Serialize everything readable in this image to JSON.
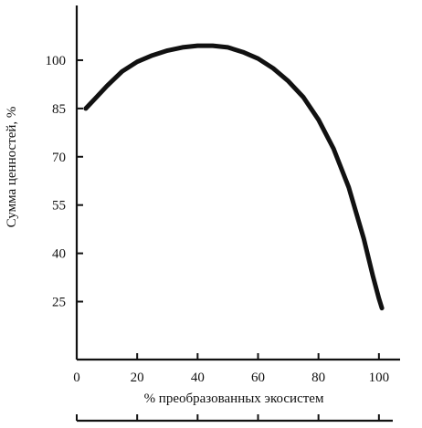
{
  "chart_data": {
    "type": "line",
    "title": "",
    "xlabel": "% преобразованных экосистем",
    "ylabel": "Сумма ценностей, %",
    "xlim": [
      0,
      107
    ],
    "ylim": [
      7,
      117
    ],
    "x_ticks": [
      0,
      20,
      40,
      60,
      80,
      100
    ],
    "y_ticks": [
      25,
      40,
      55,
      70,
      85,
      100
    ],
    "x_tick_labels": [
      "0",
      "20",
      "40",
      "60",
      "80",
      "100"
    ],
    "y_tick_labels": [
      "25",
      "40",
      "55",
      "70",
      "85",
      "100"
    ],
    "grid": false,
    "legend": "none",
    "series": [
      {
        "name": "",
        "color": "#111111",
        "x": [
          3,
          6,
          10,
          15,
          20,
          25,
          30,
          35,
          40,
          45,
          50,
          55,
          60,
          65,
          70,
          75,
          80,
          85,
          90,
          95,
          98,
          100,
          101
        ],
        "y": [
          85,
          88,
          92,
          96.5,
          99.5,
          101.5,
          103,
          104,
          104.5,
          104.5,
          104,
          102.5,
          100.5,
          97.5,
          93.5,
          88.5,
          81.5,
          72.5,
          60.5,
          44.5,
          33,
          26,
          23
        ]
      }
    ]
  }
}
